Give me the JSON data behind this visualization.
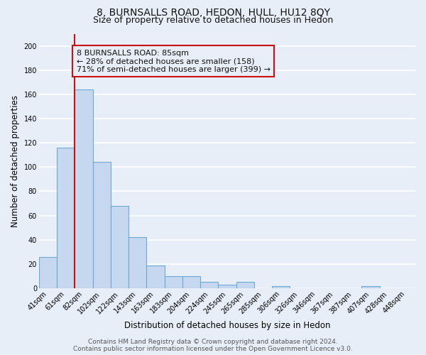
{
  "title": "8, BURNSALLS ROAD, HEDON, HULL, HU12 8QY",
  "subtitle": "Size of property relative to detached houses in Hedon",
  "xlabel": "Distribution of detached houses by size in Hedon",
  "ylabel": "Number of detached properties",
  "bar_labels": [
    "41sqm",
    "61sqm",
    "82sqm",
    "102sqm",
    "122sqm",
    "143sqm",
    "163sqm",
    "183sqm",
    "204sqm",
    "224sqm",
    "245sqm",
    "265sqm",
    "285sqm",
    "306sqm",
    "326sqm",
    "346sqm",
    "367sqm",
    "387sqm",
    "407sqm",
    "428sqm",
    "448sqm"
  ],
  "bar_heights": [
    26,
    116,
    164,
    104,
    68,
    42,
    19,
    10,
    10,
    5,
    3,
    5,
    0,
    2,
    0,
    0,
    0,
    0,
    2,
    0,
    0
  ],
  "bar_color": "#c5d8ef",
  "bar_edge_color": "#6aaad4",
  "vline_color": "#cc1111",
  "annotation_line1": "8 BURNSALLS ROAD: 85sqm",
  "annotation_line2": "← 28% of detached houses are smaller (158)",
  "annotation_line3": "71% of semi-detached houses are larger (399) →",
  "annotation_box_edge": "#cc1111",
  "ylim": [
    0,
    210
  ],
  "yticks": [
    0,
    20,
    40,
    60,
    80,
    100,
    120,
    140,
    160,
    180,
    200
  ],
  "footer_line1": "Contains HM Land Registry data © Crown copyright and database right 2024.",
  "footer_line2": "Contains public sector information licensed under the Open Government Licence v3.0.",
  "bg_color": "#e8eef8",
  "plot_bg_color": "#e8eef8",
  "grid_color": "#ffffff",
  "title_fontsize": 10,
  "subtitle_fontsize": 9,
  "axis_label_fontsize": 8.5,
  "tick_fontsize": 7,
  "annotation_fontsize": 8,
  "footer_fontsize": 6.5
}
